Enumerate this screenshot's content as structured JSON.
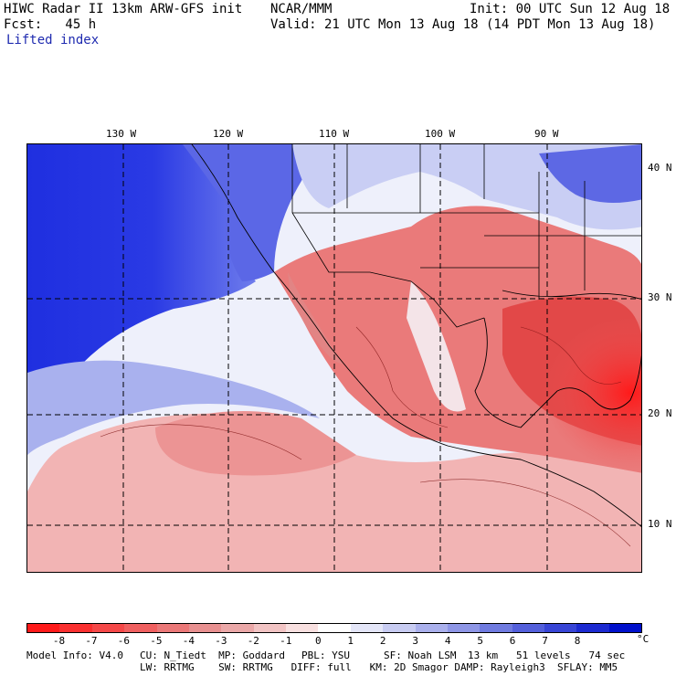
{
  "header": {
    "title_left": "HIWC Radar II 13km ARW-GFS init",
    "org": "NCAR/MMM",
    "init": "Init: 00 UTC Sun 12 Aug 18",
    "fcst": "Fcst:   45 h",
    "valid": "Valid: 21 UTC Mon 13 Aug 18 (14 PDT Mon 13 Aug 18)",
    "field": "Lifted index"
  },
  "map": {
    "lon_labels": [
      "130 W",
      "120 W",
      "110 W",
      "100 W",
      "90 W"
    ],
    "lat_labels": [
      "40 N",
      "30 N",
      "20 N",
      "10 N"
    ],
    "colors": {
      "ocean_stable": "#1f2fe0",
      "land_unstable": "#e84848"
    }
  },
  "colorbar": {
    "colors": [
      "#ff1a1a",
      "#fa3030",
      "#f54848",
      "#f06060",
      "#eb7878",
      "#e89090",
      "#eba8a8",
      "#f2c4c4",
      "#f8e0e0",
      "#ffffff",
      "#e4e6f8",
      "#c8ccf2",
      "#aab0ec",
      "#8e96e6",
      "#707be0",
      "#5460db",
      "#3845d6",
      "#1c2ad1",
      "#0010cc"
    ],
    "ticks": [
      "-8",
      "-7",
      "-6",
      "-5",
      "-4",
      "-3",
      "-2",
      "-1",
      "0",
      "1",
      "2",
      "3",
      "4",
      "5",
      "6",
      "7",
      "8"
    ],
    "unit": "°C"
  },
  "footer": {
    "line1_a": "Model Info: V4.0",
    "line1_b": "CU: N_Tiedt  MP: Goddard",
    "line1_c": "PBL: YSU",
    "line1_d": "SF: Noah LSM",
    "line1_e": "13 km   51 levels   74 sec",
    "line2": "LW: RRTMG    SW: RRTMG   DIFF: full   KM: 2D Smagor DAMP: Rayleigh3  SFLAY: MM5"
  }
}
